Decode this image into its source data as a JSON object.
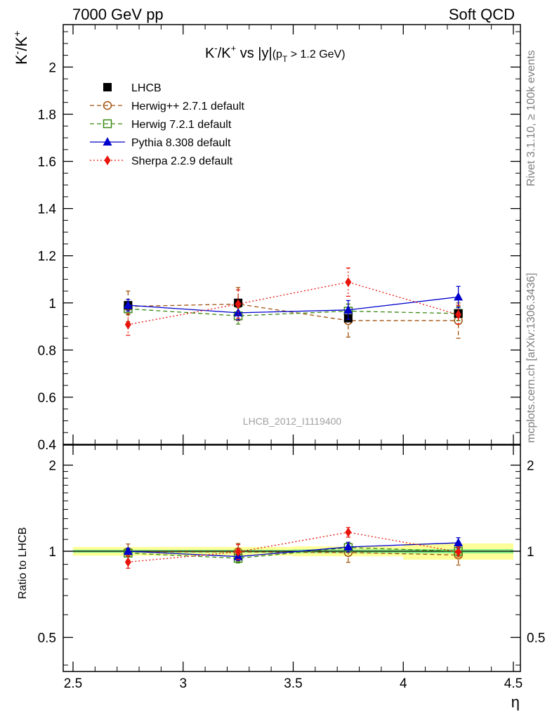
{
  "header": {
    "left": "7000 GeV pp",
    "right": "Soft QCD"
  },
  "side_labels": {
    "rivet": "Rivet 3.1.10, ≥ 100k events",
    "mcplots": "mcplots.cern.ch [arXiv:1306.3436]"
  },
  "chart_data": [
    {
      "type": "scatter",
      "panel": "main",
      "title": "K⁻/K⁺ vs |y|(pT > 1.2 GeV)",
      "title_parts": {
        "main": "K",
        "sup1": "-",
        "mid": "/K",
        "sup2": "+",
        "vs": " vs |y|",
        "paren_open": "(p",
        "sub": "T",
        "paren_rest": " > 1.2 GeV)"
      },
      "ylabel": "K⁻/K⁺",
      "ylabel_parts": {
        "a": "K",
        "sup1": "-",
        "b": "/K",
        "sup2": "+"
      },
      "xlim": [
        2.5,
        4.5
      ],
      "ylim": [
        0.4,
        2.18
      ],
      "yticks": [
        "0.4",
        "0.6",
        "0.8",
        "1",
        "1.2",
        "1.4",
        "1.6",
        "1.8",
        "2"
      ],
      "watermark": "LHCB_2012_I1119400",
      "legend_position": "top-left",
      "x": [
        2.75,
        3.25,
        3.75,
        4.25
      ],
      "series": [
        {
          "name": "LHCB",
          "color": "#000000",
          "marker": "square-filled",
          "line": "none",
          "values": [
            0.99,
            1.0,
            0.935,
            0.955
          ],
          "err": [
            0.012,
            0.012,
            0.014,
            0.016
          ]
        },
        {
          "name": "Herwig++ 2.7.1 default",
          "color": "#a0520d",
          "marker": "circle-open",
          "line": "dashed",
          "values": [
            0.985,
            0.995,
            0.925,
            0.925
          ],
          "err": [
            0.065,
            0.07,
            0.07,
            0.075
          ]
        },
        {
          "name": "Herwig 7.2.1 default",
          "color": "#3a8a12",
          "marker": "square-open",
          "line": "dashed",
          "values": [
            0.975,
            0.945,
            0.965,
            0.955
          ],
          "err": [
            0.025,
            0.035,
            0.03,
            0.03
          ]
        },
        {
          "name": "Pythia 8.308 default",
          "color": "#0000cc",
          "marker": "triangle-filled",
          "line": "solid",
          "values": [
            0.99,
            0.958,
            0.97,
            1.025
          ],
          "err": [
            0.025,
            0.03,
            0.04,
            0.045
          ]
        },
        {
          "name": "Sherpa 2.2.9 default",
          "color": "#e8140c",
          "marker": "diamond-filled",
          "line": "dotted",
          "values": [
            0.908,
            0.995,
            1.088,
            0.95
          ],
          "err": [
            0.045,
            0.06,
            0.06,
            0.04
          ]
        }
      ]
    },
    {
      "type": "scatter",
      "panel": "ratio",
      "ylabel": "Ratio to LHCB",
      "xlabel": "η",
      "xlim": [
        2.5,
        4.5
      ],
      "xticks": [
        "2.5",
        "3",
        "3.5",
        "4",
        "4.5"
      ],
      "ylim": [
        0.38,
        2.35
      ],
      "yscale": "log",
      "yticks": [
        "0.5",
        "1",
        "2"
      ],
      "band": {
        "edges": [
          2.5,
          3.0,
          3.5,
          4.0,
          4.5
        ],
        "stat": [
          0.012,
          0.012,
          0.015,
          0.017
        ],
        "total": [
          0.035,
          0.035,
          0.04,
          0.065
        ],
        "inner_color": "#88ee88",
        "outer_color": "#ffff99"
      },
      "x": [
        2.75,
        3.25,
        3.75,
        4.25
      ],
      "series": [
        {
          "name": "Herwig++ 2.7.1 default",
          "values": [
            0.995,
            0.995,
            0.99,
            0.97
          ],
          "err": [
            0.065,
            0.07,
            0.075,
            0.075
          ]
        },
        {
          "name": "Herwig 7.2.1 default",
          "values": [
            0.985,
            0.945,
            1.03,
            1.0
          ],
          "err": [
            0.025,
            0.035,
            0.035,
            0.035
          ]
        },
        {
          "name": "Pythia 8.308 default",
          "values": [
            1.0,
            0.958,
            1.035,
            1.07
          ],
          "err": [
            0.025,
            0.03,
            0.04,
            0.045
          ]
        },
        {
          "name": "Sherpa 2.2.9 default",
          "values": [
            0.917,
            0.995,
            1.165,
            0.995
          ],
          "err": [
            0.045,
            0.06,
            0.045,
            0.04
          ]
        }
      ]
    }
  ]
}
